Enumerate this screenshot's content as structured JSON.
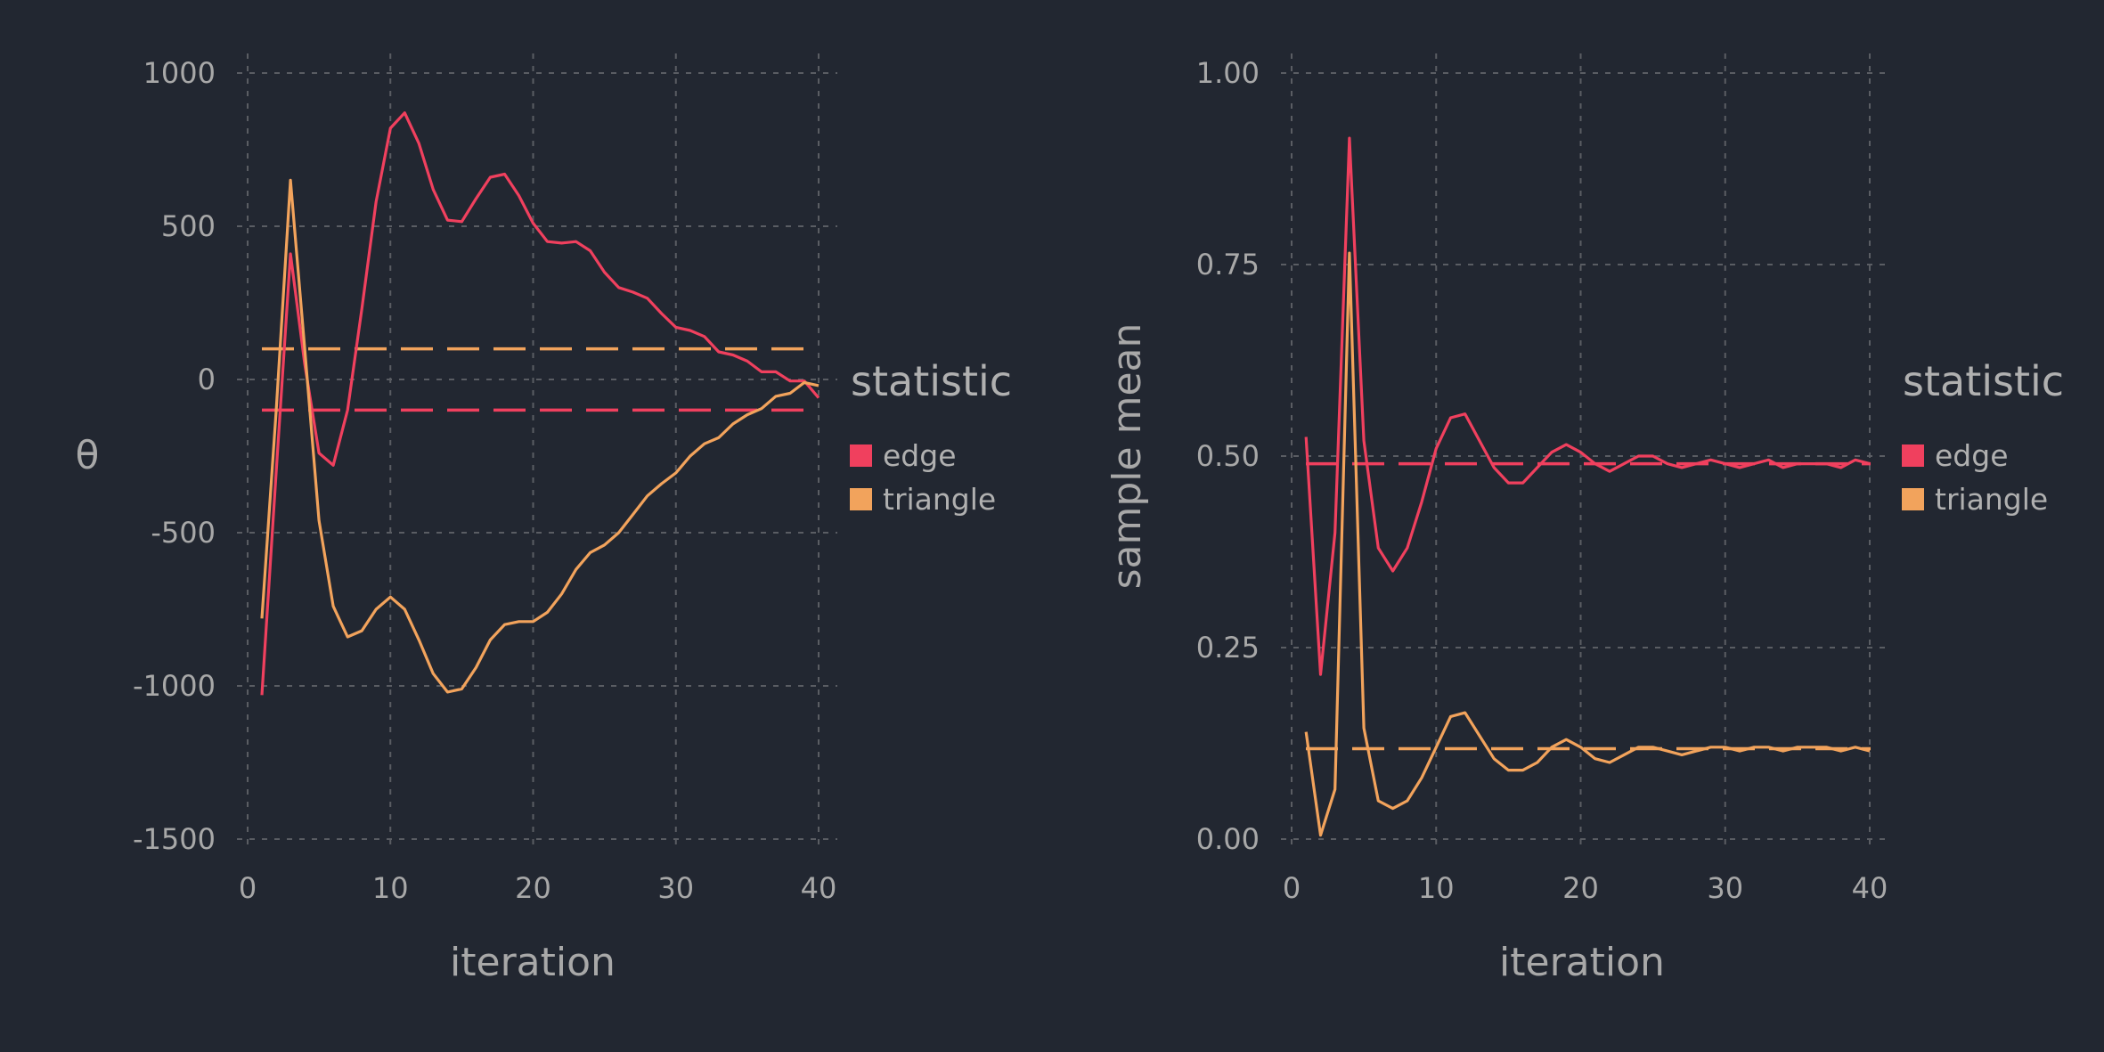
{
  "colors": {
    "edge": "#f0405e",
    "triangle": "#f2a35c",
    "background": "#222731",
    "text": "#a8a8a8",
    "grid": "#5a5d63"
  },
  "chart_data": [
    {
      "type": "line",
      "xlabel": "iteration",
      "ylabel": "θ",
      "xlim": [
        0,
        41
      ],
      "ylim": [
        -1500,
        1000
      ],
      "xticks": [
        "0",
        "10",
        "20",
        "30",
        "40"
      ],
      "yticks": [
        "1000",
        "500",
        "0",
        "-500",
        "-1000",
        "-1500"
      ],
      "grid": true,
      "legend": {
        "title": "statistic",
        "placement": "right",
        "entries": [
          "edge",
          "triangle"
        ]
      },
      "x": [
        1,
        2,
        3,
        4,
        5,
        6,
        7,
        8,
        9,
        10,
        11,
        12,
        13,
        14,
        15,
        16,
        17,
        18,
        19,
        20,
        21,
        22,
        23,
        24,
        25,
        26,
        27,
        28,
        29,
        30,
        31,
        32,
        33,
        34,
        35,
        36,
        37,
        38,
        39,
        40
      ],
      "series": [
        {
          "name": "edge",
          "color": "#f0405e",
          "values": [
            -1030,
            -300,
            410,
            50,
            -240,
            -280,
            -100,
            230,
            580,
            820,
            870,
            770,
            620,
            520,
            515,
            590,
            660,
            670,
            600,
            510,
            450,
            445,
            450,
            420,
            350,
            300,
            285,
            265,
            215,
            170,
            160,
            140,
            90,
            80,
            60,
            25,
            25,
            -5,
            -5,
            -60
          ]
        },
        {
          "name": "triangle",
          "color": "#f2a35c",
          "values": [
            -780,
            -100,
            650,
            100,
            -460,
            -740,
            -840,
            -820,
            -750,
            -710,
            -750,
            -850,
            -960,
            -1020,
            -1010,
            -940,
            -850,
            -800,
            -790,
            -790,
            -760,
            -700,
            -620,
            -565,
            -540,
            -500,
            -440,
            -380,
            -340,
            -305,
            -250,
            -210,
            -190,
            -145,
            -115,
            -95,
            -55,
            -45,
            -10,
            -20
          ]
        }
      ],
      "reference_lines": [
        {
          "name": "triangle",
          "color": "#f2a35c",
          "value": 100
        },
        {
          "name": "edge",
          "color": "#f0405e",
          "value": -100
        }
      ]
    },
    {
      "type": "line",
      "xlabel": "iteration",
      "ylabel": "sample mean",
      "xlim": [
        0,
        41
      ],
      "ylim": [
        0,
        1
      ],
      "xticks": [
        "0",
        "10",
        "20",
        "30",
        "40"
      ],
      "yticks": [
        "1.00",
        "0.75",
        "0.50",
        "0.25",
        "0.00"
      ],
      "grid": true,
      "legend": {
        "title": "statistic",
        "placement": "right",
        "entries": [
          "edge",
          "triangle"
        ]
      },
      "x": [
        1,
        2,
        3,
        4,
        5,
        6,
        7,
        8,
        9,
        10,
        11,
        12,
        13,
        14,
        15,
        16,
        17,
        18,
        19,
        20,
        21,
        22,
        23,
        24,
        25,
        26,
        27,
        28,
        29,
        30,
        31,
        32,
        33,
        34,
        35,
        36,
        37,
        38,
        39,
        40
      ],
      "series": [
        {
          "name": "edge",
          "color": "#f0405e",
          "values": [
            0.525,
            0.215,
            0.4,
            0.915,
            0.52,
            0.38,
            0.35,
            0.38,
            0.44,
            0.51,
            0.55,
            0.555,
            0.52,
            0.485,
            0.465,
            0.465,
            0.485,
            0.505,
            0.515,
            0.505,
            0.49,
            0.48,
            0.49,
            0.5,
            0.5,
            0.49,
            0.485,
            0.49,
            0.495,
            0.49,
            0.485,
            0.49,
            0.495,
            0.485,
            0.49,
            0.49,
            0.49,
            0.485,
            0.495,
            0.49
          ]
        },
        {
          "name": "triangle",
          "color": "#f2a35c",
          "values": [
            0.14,
            0.005,
            0.065,
            0.765,
            0.145,
            0.05,
            0.04,
            0.05,
            0.08,
            0.12,
            0.16,
            0.165,
            0.135,
            0.105,
            0.09,
            0.09,
            0.1,
            0.12,
            0.13,
            0.12,
            0.105,
            0.1,
            0.11,
            0.12,
            0.12,
            0.115,
            0.11,
            0.115,
            0.12,
            0.12,
            0.115,
            0.12,
            0.12,
            0.115,
            0.12,
            0.12,
            0.12,
            0.115,
            0.12,
            0.115
          ]
        }
      ],
      "reference_lines": [
        {
          "name": "edge",
          "color": "#f0405e",
          "value": 0.49
        },
        {
          "name": "triangle",
          "color": "#f2a35c",
          "value": 0.118
        }
      ]
    }
  ]
}
